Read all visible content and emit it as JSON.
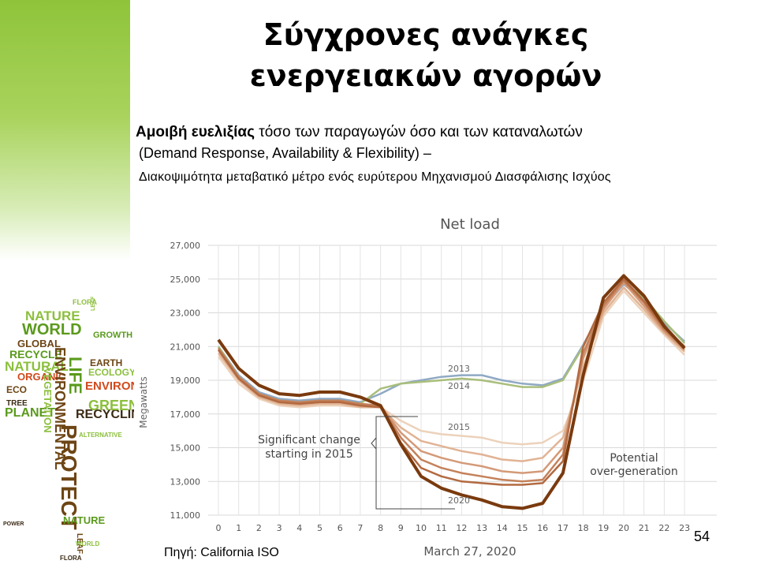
{
  "slide": {
    "title_line1": "Σύγχρονες ανάγκες",
    "title_line2": "ενεργειακών αγορών",
    "subtitle_bold": "Αμοιβή ευελιξίας",
    "subtitle_rest": " τόσο των παραγωγών όσο και των καταναλωτών",
    "subtitle_line2": "(Demand Response, Availability & Flexibility) –",
    "subtitle_line3": "Διακοψιμότητα μεταβατικό μέτρο ενός ευρύτερου Μηχανισμού Διασφάλισης Ισχύος",
    "source": "Πηγή: California ISO",
    "page_number": "54"
  },
  "word_cloud": [
    "NATURE",
    "WORLD",
    "FLORA",
    "LEAF",
    "GREEN",
    "GROWTH",
    "GLOBAL",
    "RECYCLE",
    "NATURAL",
    "ORGANIC",
    "LIFE",
    "ECO",
    "TREE",
    "PLANET",
    "EARTH",
    "ECOLOGY",
    "ENVIRONMENT",
    "RECYCLING",
    "ENVIRONMENTAL",
    "VEGETATION",
    "PROTECT",
    "ALTERNATIVE",
    "POWER",
    "LEAF"
  ],
  "chart_data": {
    "type": "line",
    "title": "Net load",
    "xlabel": "March 27, 2020",
    "ylabel": "Megawatts",
    "x": [
      0,
      1,
      2,
      3,
      4,
      5,
      6,
      7,
      8,
      9,
      10,
      11,
      12,
      13,
      14,
      15,
      16,
      17,
      18,
      19,
      20,
      21,
      22,
      23
    ],
    "ylim": [
      11000,
      27000
    ],
    "yticks": [
      "11,000",
      "13,000",
      "15,000",
      "17,000",
      "19,000",
      "21,000",
      "23,000",
      "25,000",
      "27,000"
    ],
    "xticks": [
      "0",
      "1",
      "2",
      "3",
      "4",
      "5",
      "6",
      "7",
      "8",
      "9",
      "10",
      "11",
      "12",
      "13",
      "14",
      "15",
      "16",
      "17",
      "18",
      "19",
      "20",
      "21",
      "22",
      "23"
    ],
    "grid": true,
    "series": [
      {
        "name": "2013",
        "color": "#8fa9c4",
        "values": [
          21000,
          19300,
          18300,
          17900,
          17800,
          17900,
          17900,
          17700,
          18200,
          18800,
          19000,
          19200,
          19300,
          19300,
          19000,
          18800,
          18700,
          19100,
          21100,
          23300,
          24700,
          23700,
          22400,
          21300
        ]
      },
      {
        "name": "2014",
        "color": "#a9be7b",
        "values": [
          21000,
          19200,
          18200,
          17800,
          17700,
          17800,
          17800,
          17600,
          18500,
          18800,
          18900,
          19000,
          19100,
          19000,
          18800,
          18600,
          18600,
          19000,
          21000,
          23500,
          24800,
          23900,
          22500,
          21200
        ]
      },
      {
        "name": "2015",
        "color": "#ecd2bb",
        "values": [
          20400,
          18800,
          17900,
          17500,
          17400,
          17500,
          17500,
          17400,
          17400,
          16600,
          16000,
          15800,
          15700,
          15600,
          15300,
          15200,
          15300,
          16000,
          19000,
          22800,
          24300,
          23000,
          21700,
          20500
        ]
      },
      {
        "name": "",
        "color": "#e1b394",
        "values": [
          20600,
          19000,
          18000,
          17600,
          17500,
          17600,
          17600,
          17400,
          17400,
          16200,
          15400,
          15100,
          14800,
          14600,
          14300,
          14200,
          14400,
          15600,
          19800,
          23000,
          24500,
          23200,
          21800,
          20700
        ]
      },
      {
        "name": "",
        "color": "#d49a78",
        "values": [
          20800,
          19100,
          18100,
          17700,
          17600,
          17700,
          17700,
          17500,
          17500,
          15900,
          14800,
          14400,
          14100,
          13900,
          13600,
          13500,
          13600,
          15000,
          20300,
          23200,
          24800,
          23400,
          21900,
          20800
        ]
      },
      {
        "name": "",
        "color": "#c4815a",
        "values": [
          20900,
          19200,
          18200,
          17800,
          17700,
          17800,
          17800,
          17600,
          17500,
          15600,
          14300,
          13800,
          13500,
          13300,
          13100,
          13000,
          13100,
          14600,
          20600,
          23400,
          24900,
          23600,
          22000,
          20900
        ]
      },
      {
        "name": "",
        "color": "#b36a41",
        "values": [
          20800,
          19100,
          18100,
          17700,
          17600,
          17700,
          17700,
          17500,
          17400,
          15300,
          13800,
          13300,
          13000,
          12900,
          12800,
          12800,
          12900,
          14200,
          21000,
          23600,
          25000,
          23700,
          22100,
          21000
        ]
      },
      {
        "name": "2020",
        "color": "#7a3a0e",
        "values": [
          21400,
          19700,
          18700,
          18200,
          18100,
          18300,
          18300,
          18000,
          17500,
          15200,
          13300,
          12600,
          12200,
          11900,
          11500,
          11400,
          11700,
          13500,
          19300,
          23900,
          25200,
          24000,
          22200,
          20900
        ]
      }
    ],
    "annotations": {
      "significant_change": [
        "Significant change",
        "starting in 2015"
      ],
      "potential": [
        "Potential",
        "over-generation"
      ]
    }
  }
}
